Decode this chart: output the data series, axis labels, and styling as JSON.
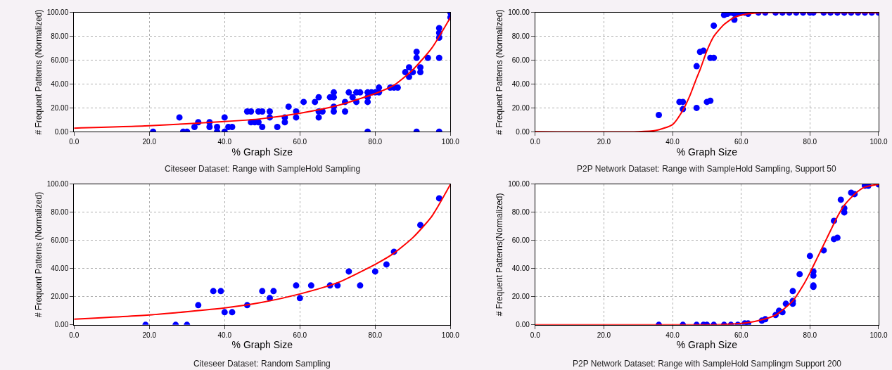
{
  "chart_data": [
    {
      "type": "scatter",
      "title": "Citeseer Dataset: Range with SampleHold Sampling",
      "xlabel": "% Graph Size",
      "ylabel": "# Frequent Patterns (Normalized)",
      "grid": true,
      "xlim": [
        0,
        100
      ],
      "ylim": [
        0,
        100
      ],
      "xticks": [
        {
          "value": 0,
          "label": "0.0"
        },
        {
          "value": 20,
          "label": "20.0"
        },
        {
          "value": 40,
          "label": "40.0"
        },
        {
          "value": 60,
          "label": "60.0"
        },
        {
          "value": 80,
          "label": "80.0"
        },
        {
          "value": 100,
          "label": "100.0"
        }
      ],
      "yticks": [
        {
          "value": 0,
          "label": "0.00"
        },
        {
          "value": 20,
          "label": "20.00"
        },
        {
          "value": 40,
          "label": "40.00"
        },
        {
          "value": 60,
          "label": "60.00"
        },
        {
          "value": 80,
          "label": "80.00"
        },
        {
          "value": 100,
          "label": "100.00"
        }
      ],
      "series": [
        {
          "marker": "circle",
          "color": "#0000ff",
          "x": [
            21,
            28,
            29,
            30,
            32,
            33,
            36,
            36,
            38,
            38,
            40,
            40,
            41,
            42,
            46,
            47,
            47,
            48,
            49,
            49,
            50,
            50,
            52,
            52,
            54,
            56,
            56,
            57,
            59,
            59,
            61,
            64,
            65,
            65,
            65,
            66,
            68,
            69,
            69,
            69,
            69,
            72,
            72,
            73,
            74,
            75,
            75,
            76,
            78,
            78,
            78,
            78,
            79,
            80,
            81,
            81,
            84,
            85,
            86,
            88,
            89,
            89,
            90,
            91,
            91,
            91,
            92,
            92,
            94,
            97,
            97,
            97,
            97,
            97,
            100,
            100
          ],
          "values": [
            0,
            12,
            0,
            0,
            4,
            8,
            4,
            8,
            4,
            0,
            12,
            0,
            4,
            4,
            17,
            17,
            8,
            8,
            8,
            17,
            17,
            4,
            17,
            12,
            4,
            12,
            8,
            21,
            17,
            12,
            25,
            25,
            17,
            12,
            29,
            17,
            29,
            29,
            33,
            21,
            17,
            25,
            17,
            33,
            29,
            25,
            33,
            33,
            33,
            29,
            25,
            0,
            33,
            33,
            37,
            33,
            37,
            37,
            37,
            50,
            54,
            46,
            50,
            67,
            62,
            0,
            50,
            54,
            62,
            62,
            79,
            83,
            87,
            0,
            100,
            96
          ]
        },
        {
          "type": "line",
          "marker": "none",
          "line_style": "solid",
          "color": "#ff0000",
          "x": [
            0,
            20,
            40,
            50,
            60,
            70,
            80,
            85,
            90,
            95,
            100
          ],
          "values": [
            3,
            5,
            8.5,
            11,
            15.5,
            22,
            32,
            39,
            52,
            70,
            96
          ]
        }
      ]
    },
    {
      "type": "scatter",
      "title": "P2P Network Dataset: Range with SampleHold Sampling, Support 50",
      "xlabel": "% Graph Size",
      "ylabel": "# Frequent Patterns (Normalized)",
      "grid": true,
      "xlim": [
        0,
        100
      ],
      "ylim": [
        0,
        100
      ],
      "xticks": [
        {
          "value": 0,
          "label": "0.0"
        },
        {
          "value": 20,
          "label": "20.0"
        },
        {
          "value": 40,
          "label": "40.0"
        },
        {
          "value": 60,
          "label": "60.0"
        },
        {
          "value": 80,
          "label": "80.0"
        },
        {
          "value": 100,
          "label": "100.0"
        }
      ],
      "yticks": [
        {
          "value": 0,
          "label": "0.00"
        },
        {
          "value": 20,
          "label": "20.00"
        },
        {
          "value": 40,
          "label": "40.00"
        },
        {
          "value": 60,
          "label": "60.00"
        },
        {
          "value": 80,
          "label": "80.00"
        },
        {
          "value": 100,
          "label": "100.00"
        }
      ],
      "series": [
        {
          "marker": "circle",
          "color": "#0000ff",
          "x": [
            36,
            42,
            43,
            43,
            47,
            47,
            48,
            49,
            50,
            51,
            51,
            52,
            52,
            55,
            56,
            57,
            58,
            58,
            59,
            60,
            61,
            62,
            65,
            67,
            70,
            72,
            74,
            76,
            78,
            80,
            81,
            84,
            86,
            88,
            90,
            92,
            94,
            96,
            98,
            100
          ],
          "values": [
            14,
            25,
            25,
            19,
            20,
            55,
            67,
            68,
            25,
            26,
            62,
            62,
            89,
            98,
            99,
            100,
            99,
            94,
            100,
            100,
            100,
            99,
            100,
            100,
            100,
            100,
            100,
            100,
            100,
            100,
            100,
            100,
            100,
            100,
            100,
            100,
            100,
            100,
            100,
            100
          ]
        },
        {
          "type": "line",
          "marker": "none",
          "line_style": "solid",
          "color": "#ff0000",
          "x": [
            0,
            30,
            35,
            40,
            43,
            45,
            47,
            48,
            50,
            52,
            55,
            58,
            62,
            66,
            100
          ],
          "values": [
            0,
            0,
            1,
            6,
            18,
            30,
            45,
            52,
            68,
            80,
            90,
            96,
            99,
            100,
            100
          ]
        }
      ]
    },
    {
      "type": "scatter",
      "title": "Citeseer Dataset: Random Sampling",
      "xlabel": "% Graph Size",
      "ylabel": "# Frequent Patterns (Normalized)",
      "grid": true,
      "xlim": [
        0,
        100
      ],
      "ylim": [
        0,
        100
      ],
      "xticks": [
        {
          "value": 0,
          "label": "0.0"
        },
        {
          "value": 20,
          "label": "20.0"
        },
        {
          "value": 40,
          "label": "40.0"
        },
        {
          "value": 60,
          "label": "60.0"
        },
        {
          "value": 80,
          "label": "80.0"
        },
        {
          "value": 100,
          "label": "100.0"
        }
      ],
      "yticks": [
        {
          "value": 0,
          "label": "0.00"
        },
        {
          "value": 20,
          "label": "20.00"
        },
        {
          "value": 40,
          "label": "40.00"
        },
        {
          "value": 60,
          "label": "60.00"
        },
        {
          "value": 80,
          "label": "80.00"
        },
        {
          "value": 100,
          "label": "100.00"
        }
      ],
      "series": [
        {
          "marker": "circle",
          "color": "#0000ff",
          "x": [
            19,
            27,
            30,
            33,
            37,
            39,
            40,
            42,
            46,
            50,
            52,
            53,
            59,
            60,
            63,
            68,
            70,
            73,
            76,
            80,
            83,
            85,
            92,
            97
          ],
          "values": [
            0,
            0,
            0,
            14,
            24,
            24,
            9,
            9,
            14,
            24,
            19,
            24,
            28,
            19,
            28,
            28,
            28,
            38,
            28,
            38,
            43,
            52,
            71,
            90
          ]
        },
        {
          "type": "line",
          "marker": "none",
          "line_style": "solid",
          "color": "#ff0000",
          "x": [
            0,
            20,
            40,
            50,
            60,
            70,
            80,
            85,
            90,
            95,
            100
          ],
          "values": [
            4,
            7,
            12,
            16,
            22,
            30,
            43,
            51,
            62,
            77,
            100
          ]
        }
      ]
    },
    {
      "type": "scatter",
      "title": "P2P Network Dataset: Range with SampleHold Samplingm Support 200",
      "xlabel": "% Graph Size",
      "ylabel": "# Frequent Patterns(Normalized)",
      "grid": true,
      "xlim": [
        0,
        100
      ],
      "ylim": [
        0,
        100
      ],
      "xticks": [
        {
          "value": 0,
          "label": "0.0"
        },
        {
          "value": 20,
          "label": "20.0"
        },
        {
          "value": 40,
          "label": "40.0"
        },
        {
          "value": 60,
          "label": "60.0"
        },
        {
          "value": 80,
          "label": "80.0"
        },
        {
          "value": 100,
          "label": "100.0"
        }
      ],
      "yticks": [
        {
          "value": 0,
          "label": "0.00"
        },
        {
          "value": 20,
          "label": "20.00"
        },
        {
          "value": 40,
          "label": "40.00"
        },
        {
          "value": 60,
          "label": "60.00"
        },
        {
          "value": 80,
          "label": "80.00"
        },
        {
          "value": 100,
          "label": "100.00"
        }
      ],
      "series": [
        {
          "marker": "circle",
          "color": "#0000ff",
          "x": [
            36,
            43,
            47,
            49,
            50,
            52,
            55,
            57,
            59,
            61,
            62,
            66,
            67,
            70,
            71,
            72,
            73,
            75,
            75,
            75,
            77,
            80,
            81,
            81,
            81,
            81,
            84,
            87,
            87,
            88,
            89,
            90,
            90,
            92,
            93,
            96,
            97,
            100
          ],
          "values": [
            0,
            0,
            0,
            0,
            0,
            0,
            0,
            0,
            0,
            1,
            1,
            3,
            4,
            7,
            10,
            9,
            15,
            15,
            17,
            24,
            36,
            49,
            38,
            35,
            28,
            27,
            53,
            74,
            61,
            62,
            89,
            80,
            83,
            94,
            93,
            99,
            99,
            100
          ]
        },
        {
          "type": "line",
          "marker": "none",
          "line_style": "solid",
          "color": "#ff0000",
          "x": [
            0,
            50,
            55,
            60,
            65,
            70,
            75,
            78,
            80,
            82,
            85,
            88,
            90,
            93,
            96,
            100
          ],
          "values": [
            0,
            0,
            0.3,
            1,
            3,
            7,
            17,
            28,
            37,
            47,
            62,
            77,
            85,
            93,
            98,
            100
          ]
        }
      ]
    }
  ]
}
